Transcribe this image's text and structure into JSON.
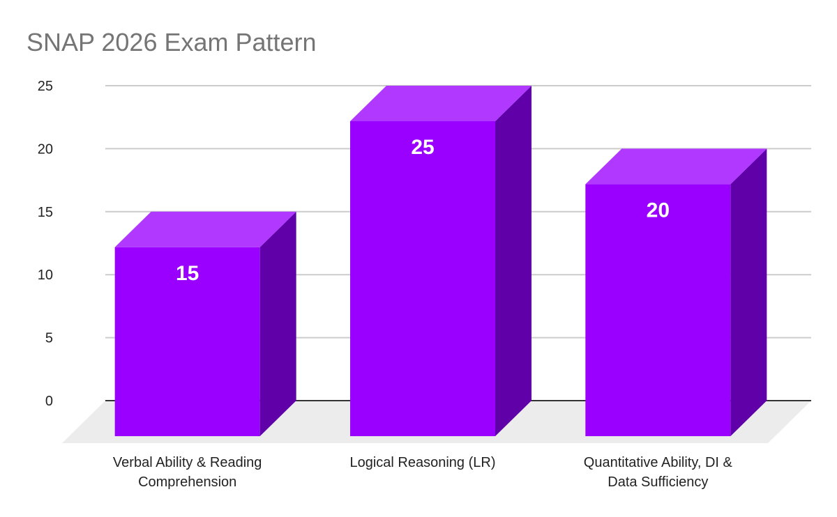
{
  "chart_data": {
    "type": "bar",
    "style": "3d",
    "title": "SNAP 2026 Exam Pattern",
    "xlabel": "",
    "ylabel": "",
    "categories": [
      [
        "Verbal Ability & Reading",
        "Comprehension"
      ],
      [
        "Logical Reasoning (LR)"
      ],
      [
        "Quantitative Ability, DI &",
        "Data Sufficiency"
      ]
    ],
    "category_names": [
      "Verbal Ability & Reading Comprehension",
      "Logical Reasoning (LR)",
      "Quantitative Ability, DI & Data Sufficiency"
    ],
    "values": [
      15,
      25,
      20
    ],
    "data_labels": [
      "15",
      "25",
      "20"
    ],
    "ylim": [
      0,
      25
    ],
    "yticks": [
      0,
      5,
      10,
      15,
      20,
      25
    ],
    "grid": true,
    "legend": "none",
    "colors": {
      "front": "#9900ff",
      "top": "#b038ff",
      "side": "#5f00a8",
      "floor": "#ececec",
      "grid": "#cccccc",
      "axis": "#333333",
      "title": "#757575",
      "text": "#222222",
      "data_label": "#ffffff"
    }
  }
}
